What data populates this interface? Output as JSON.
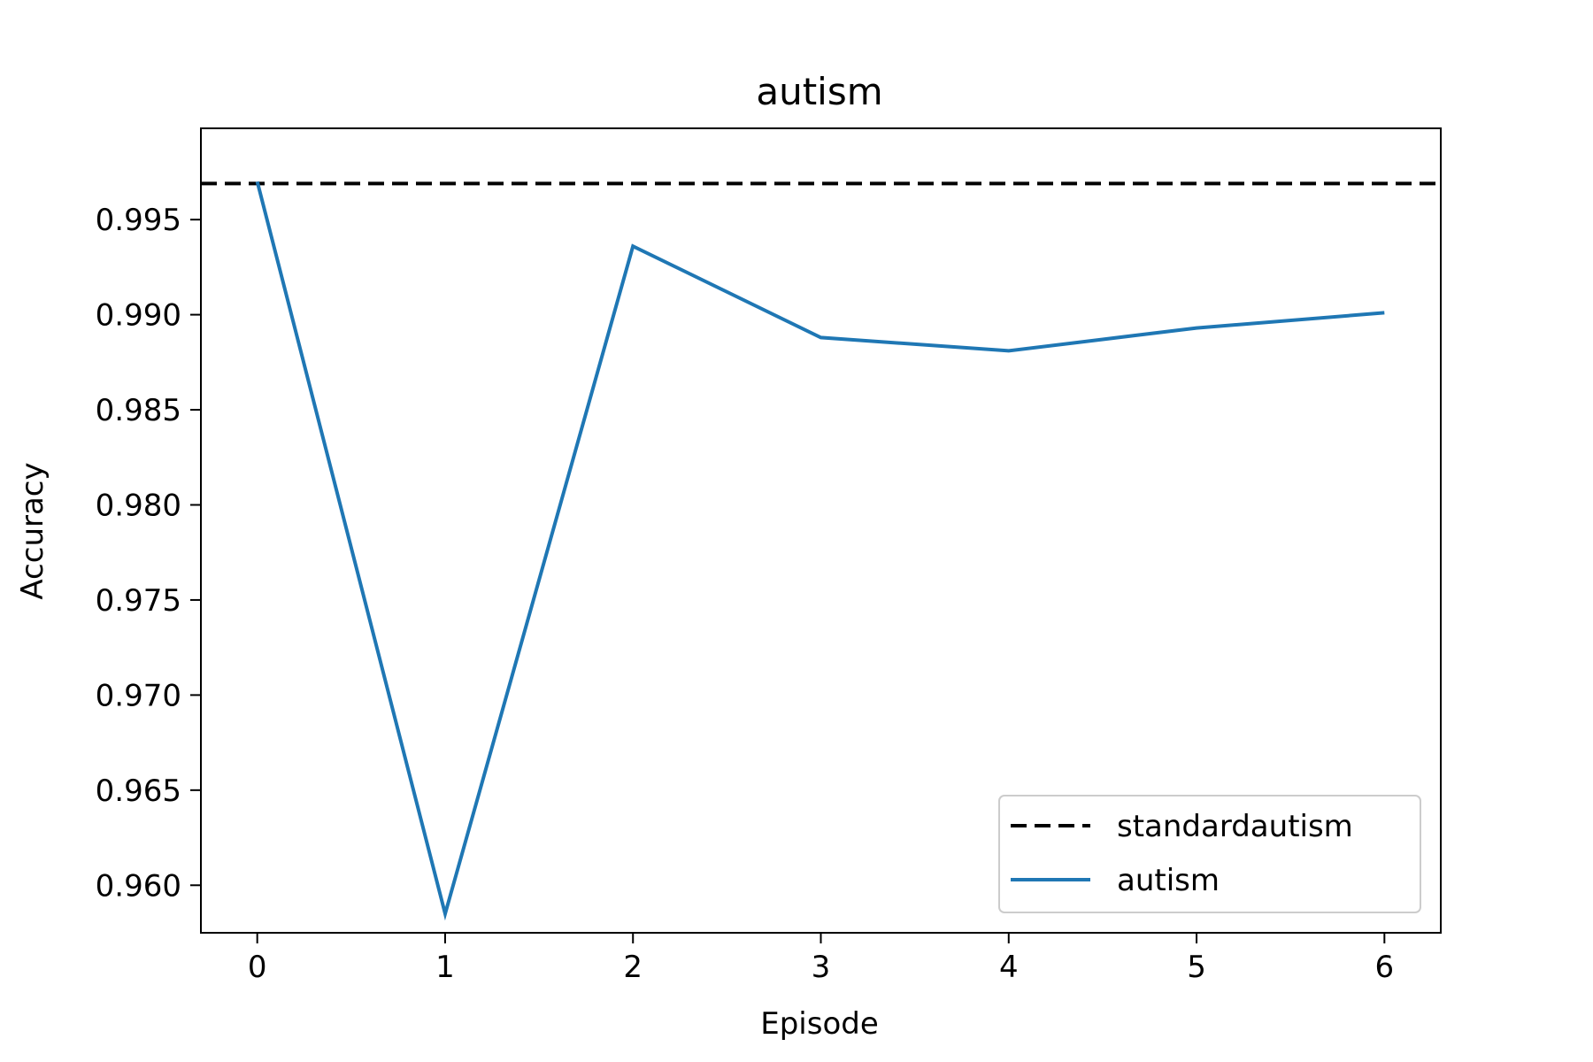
{
  "chart_data": {
    "type": "line",
    "title": "autism",
    "xlabel": "Episode",
    "ylabel": "Accuracy",
    "x": [
      0,
      1,
      2,
      3,
      4,
      5,
      6
    ],
    "xlim": [
      -0.3,
      6.3
    ],
    "ylim": [
      0.9575,
      0.9998
    ],
    "xticks": [
      "0",
      "1",
      "2",
      "3",
      "4",
      "5",
      "6"
    ],
    "yticks": [
      "0.960",
      "0.965",
      "0.970",
      "0.975",
      "0.980",
      "0.985",
      "0.990",
      "0.995"
    ],
    "ytick_values": [
      0.96,
      0.965,
      0.97,
      0.975,
      0.98,
      0.985,
      0.99,
      0.995
    ],
    "grid": false,
    "legend_position": "lower-right",
    "series": [
      {
        "name": "standardautism",
        "style": "dashed",
        "color": "#000000",
        "type": "hline",
        "value": 0.9969
      },
      {
        "name": "autism",
        "style": "solid",
        "color": "#1f77b4",
        "values": [
          0.997,
          0.9585,
          0.9936,
          0.9888,
          0.9881,
          0.9893,
          0.9901
        ]
      }
    ]
  }
}
